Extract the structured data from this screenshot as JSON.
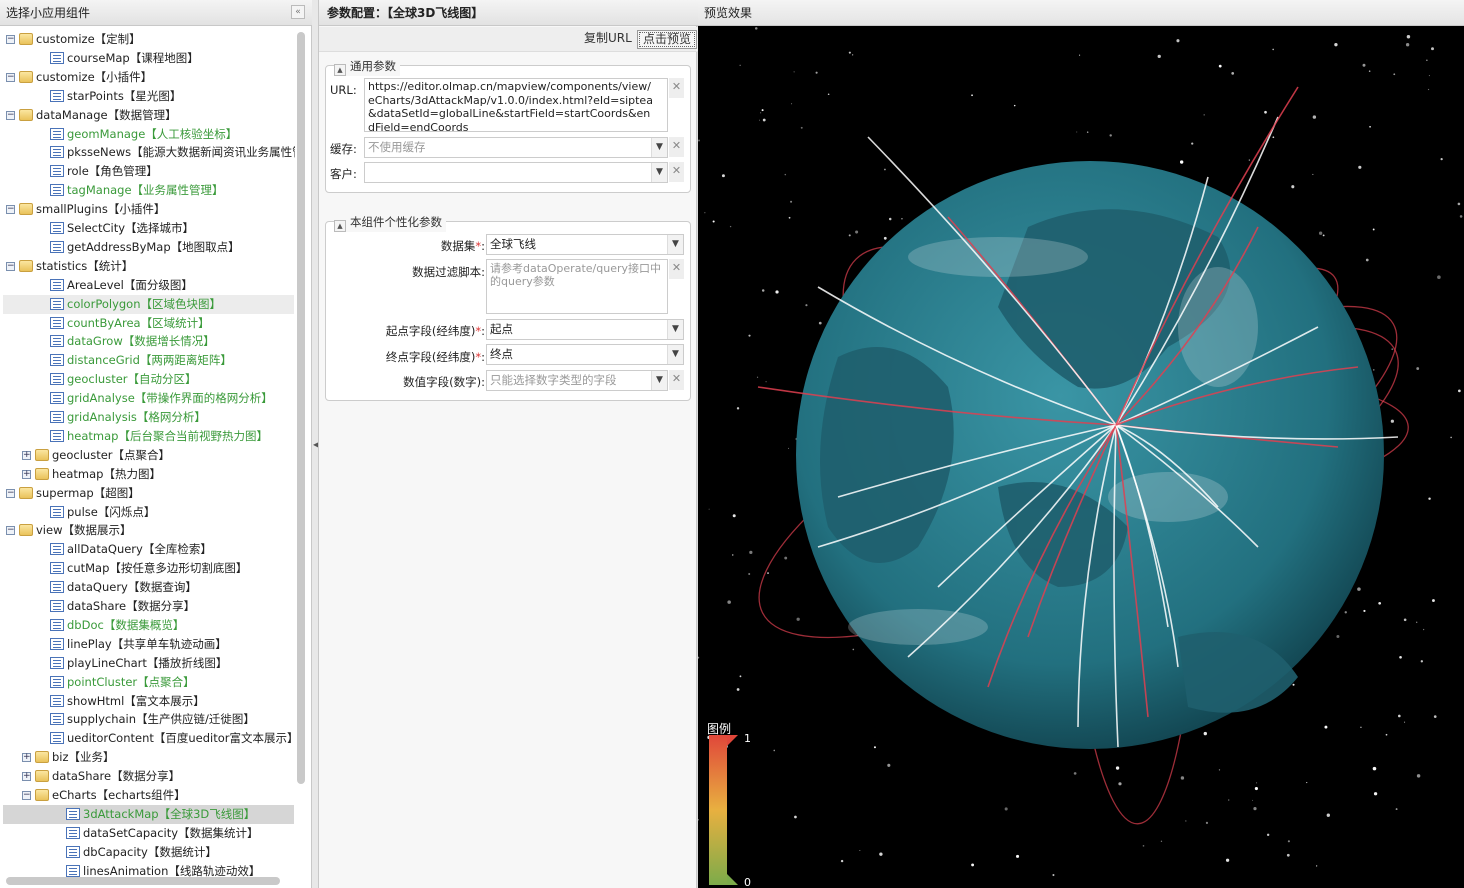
{
  "left_panel": {
    "title": "选择小应用组件",
    "collapse_icon": "double-chevron-left-icon",
    "tree": [
      {
        "level": 0,
        "type": "folder",
        "expanded": true,
        "label": "customize【定制】"
      },
      {
        "level": 1,
        "type": "leaf",
        "label": "courseMap【课程地图】"
      },
      {
        "level": 0,
        "type": "folder",
        "expanded": true,
        "label": "customize【小插件】"
      },
      {
        "level": 1,
        "type": "leaf",
        "label": "starPoints【星光图】"
      },
      {
        "level": 0,
        "type": "folder",
        "expanded": true,
        "label": "dataManage【数据管理】"
      },
      {
        "level": 1,
        "type": "leaf",
        "label": "geomManage【人工核验坐标】",
        "green": true
      },
      {
        "level": 1,
        "type": "leaf",
        "label": "pksseNews【能源大数据新闻资讯业务属性管理】"
      },
      {
        "level": 1,
        "type": "leaf",
        "label": "role【角色管理】"
      },
      {
        "level": 1,
        "type": "leaf",
        "label": "tagManage【业务属性管理】",
        "green": true
      },
      {
        "level": 0,
        "type": "folder",
        "expanded": true,
        "label": "smallPlugins【小插件】"
      },
      {
        "level": 1,
        "type": "leaf",
        "label": "SelectCity【选择城市】"
      },
      {
        "level": 1,
        "type": "leaf",
        "label": "getAddressByMap【地图取点】"
      },
      {
        "level": 0,
        "type": "folder",
        "expanded": true,
        "label": "statistics【统计】"
      },
      {
        "level": 1,
        "type": "leaf",
        "label": "AreaLevel【面分级图】"
      },
      {
        "level": 1,
        "type": "leaf",
        "label": "colorPolygon【区域色块图】",
        "green": true,
        "hover": true
      },
      {
        "level": 1,
        "type": "leaf",
        "label": "countByArea【区域统计】",
        "green": true
      },
      {
        "level": 1,
        "type": "leaf",
        "label": "dataGrow【数据增长情况】",
        "green": true
      },
      {
        "level": 1,
        "type": "leaf",
        "label": "distanceGrid【两两距离矩阵】",
        "green": true
      },
      {
        "level": 1,
        "type": "leaf",
        "label": "geocluster【自动分区】",
        "green": true
      },
      {
        "level": 1,
        "type": "leaf",
        "label": "gridAnalyse【带操作界面的格网分析】",
        "green": true
      },
      {
        "level": 1,
        "type": "leaf",
        "label": "gridAnalysis【格网分析】",
        "green": true
      },
      {
        "level": 1,
        "type": "leaf",
        "label": "heatmap【后台聚合当前视野热力图】",
        "green": true
      },
      {
        "level": 1,
        "type": "folder",
        "expanded": false,
        "label": "geocluster【点聚合】"
      },
      {
        "level": 1,
        "type": "folder",
        "expanded": false,
        "label": "heatmap【热力图】"
      },
      {
        "level": 0,
        "type": "folder",
        "expanded": true,
        "label": "supermap【超图】"
      },
      {
        "level": 1,
        "type": "leaf",
        "label": "pulse【闪烁点】"
      },
      {
        "level": 0,
        "type": "folder",
        "expanded": true,
        "label": "view【数据展示】"
      },
      {
        "level": 1,
        "type": "leaf",
        "label": "allDataQuery【全库检索】"
      },
      {
        "level": 1,
        "type": "leaf",
        "label": "cutMap【按任意多边形切割底图】"
      },
      {
        "level": 1,
        "type": "leaf",
        "label": "dataQuery【数据查询】"
      },
      {
        "level": 1,
        "type": "leaf",
        "label": "dataShare【数据分享】"
      },
      {
        "level": 1,
        "type": "leaf",
        "label": "dbDoc【数据集概览】",
        "green": true
      },
      {
        "level": 1,
        "type": "leaf",
        "label": "linePlay【共享单车轨迹动画】"
      },
      {
        "level": 1,
        "type": "leaf",
        "label": "playLineChart【播放折线图】"
      },
      {
        "level": 1,
        "type": "leaf",
        "label": "pointCluster【点聚合】",
        "green": true
      },
      {
        "level": 1,
        "type": "leaf",
        "label": "showHtml【富文本展示】"
      },
      {
        "level": 1,
        "type": "leaf",
        "label": "supplychain【生产供应链/迁徙图】"
      },
      {
        "level": 1,
        "type": "leaf",
        "label": "ueditorContent【百度ueditor富文本展示】"
      },
      {
        "level": 1,
        "type": "folder",
        "expanded": false,
        "label": "biz【业务】"
      },
      {
        "level": 1,
        "type": "folder",
        "expanded": false,
        "label": "dataShare【数据分享】"
      },
      {
        "level": 1,
        "type": "folder",
        "expanded": true,
        "label": "eCharts【echarts组件】"
      },
      {
        "level": 2,
        "type": "leaf",
        "label": "3dAttackMap【全球3D飞线图】",
        "green": true,
        "selected": true
      },
      {
        "level": 2,
        "type": "leaf",
        "label": "dataSetCapacity【数据集统计】"
      },
      {
        "level": 2,
        "type": "leaf",
        "label": "dbCapacity【数据统计】"
      },
      {
        "level": 2,
        "type": "leaf",
        "label": "linesAnimation【线路轨迹动效】"
      }
    ]
  },
  "config_panel": {
    "title": "参数配置：【全球3D飞线图】",
    "copy_url": "复制URL",
    "preview": "点击预览",
    "general": {
      "legend": "通用参数",
      "url_label": "URL:",
      "url_value": "https://editor.olmap.cn/mapview/components/view/eCharts/3dAttackMap/v1.0.0/index.html?eId=siptea&dataSetId=globalLine&startField=startCoords&endField=endCoords",
      "cache_label": "缓存:",
      "cache_placeholder": "不使用缓存",
      "client_label": "客户:",
      "client_value": ""
    },
    "custom": {
      "legend": "本组件个性化参数",
      "dataset_label": "数据集",
      "dataset_value": "全球飞线",
      "filter_label": "数据过滤脚本:",
      "filter_placeholder": "请参考dataOperate/query接口中的query参数",
      "start_label": "起点字段(经纬度)",
      "start_value": "起点",
      "end_label": "终点字段(经纬度)",
      "end_value": "终点",
      "value_label": "数值字段(数字):",
      "value_placeholder": "只能选择数字类型的字段",
      "required_mark": "*",
      "colon": ":"
    }
  },
  "preview_panel": {
    "title": "预览效果",
    "legend_title": "图例",
    "legend_max": "1",
    "legend_min": "0",
    "colors": {
      "ocean": "#2a7d8c",
      "line_white": "#ffffff",
      "line_red": "#e04050",
      "legend_top": "#e0473a",
      "legend_mid": "#e8b040",
      "legend_bottom": "#7cab4a"
    }
  }
}
